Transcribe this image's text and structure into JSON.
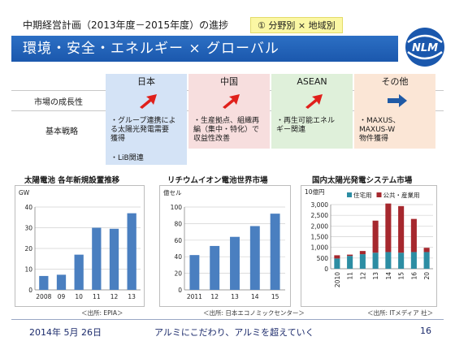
{
  "header": {
    "title": "中期経営計画（2013年度－2015年度）の進捗",
    "badge": "① 分野別 × 地域別",
    "banner": "環境・安全・エネルギー × グローバル",
    "logo_text": "NLM"
  },
  "matrix": {
    "row_labels": [
      "市場の成長性",
      "基本戦略"
    ],
    "columns": [
      {
        "name": "日本",
        "color": "#d4e3f6",
        "arrow": "up-right",
        "arrow_color": "#e0201b",
        "strategy": [
          "・グループ連携によ",
          "る太陽光発電需要",
          "獲得",
          "",
          "・LiB関連"
        ]
      },
      {
        "name": "中国",
        "color": "#f7dede",
        "arrow": "up-right",
        "arrow_color": "#e0201b",
        "strategy": [
          "・生産拠点、組織再",
          "編（集中・特化）で",
          "収益性改善"
        ]
      },
      {
        "name": "ASEAN",
        "color": "#dff0da",
        "arrow": "up-right",
        "arrow_color": "#e0201b",
        "strategy": [
          "・再生可能エネル",
          "ギー関連"
        ]
      },
      {
        "name": "その他",
        "color": "#fbe6d6",
        "arrow": "right",
        "arrow_color": "#1f5aa6",
        "strategy": [
          "・MAXUS、",
          "MAXUS-W",
          "物件獲得"
        ]
      }
    ]
  },
  "charts": [
    {
      "title": "太陽電池 各年新規設置推移",
      "source": "＜出所: EPIA＞",
      "chart_data": {
        "type": "bar",
        "ylabel": "GW",
        "ylim": [
          0,
          40
        ],
        "yticks": [
          0,
          10,
          20,
          30,
          40
        ],
        "categories": [
          "2008",
          "09",
          "10",
          "11",
          "12",
          "13"
        ],
        "values": [
          6.7,
          7.3,
          17.0,
          30.0,
          29.5,
          37.0
        ],
        "color": "#4a7fc0"
      }
    },
    {
      "title": "リチウムイオン電池世界市場",
      "source": "＜出所: 日本エコノミックセンター＞",
      "chart_data": {
        "type": "bar",
        "ylabel": "億セル",
        "ylim": [
          0,
          100
        ],
        "yticks": [
          0,
          20,
          40,
          60,
          80,
          100
        ],
        "categories": [
          "2011",
          "12",
          "13",
          "14",
          "15"
        ],
        "values": [
          42,
          53,
          64,
          77,
          92
        ],
        "color": "#4a7fc0"
      }
    },
    {
      "title": "国内太陽光発電システム市場",
      "source": "＜出所: ITメディア 社＞",
      "chart_data": {
        "type": "bar",
        "stacked": true,
        "ylabel": "10億円",
        "ylim": [
          0,
          3000
        ],
        "yticks": [
          0,
          500,
          1000,
          1500,
          2000,
          2500,
          3000
        ],
        "categories": [
          "2010",
          "11",
          "12",
          "13",
          "14",
          "15",
          "16",
          "20"
        ],
        "series": [
          {
            "name": "住宅用",
            "values": [
              480,
              600,
              680,
              750,
              780,
              750,
              780,
              780
            ],
            "color": "#2c8da3"
          },
          {
            "name": "公共・産業用",
            "values": [
              150,
              60,
              150,
              1500,
              2270,
              2180,
              1550,
              200
            ],
            "color": "#a6282e"
          }
        ],
        "legend": "top"
      }
    }
  ],
  "footer": {
    "date": "2014年 5月 26日",
    "slogan": "アルミにこだわり、アルミを超えていく",
    "page": "16"
  }
}
